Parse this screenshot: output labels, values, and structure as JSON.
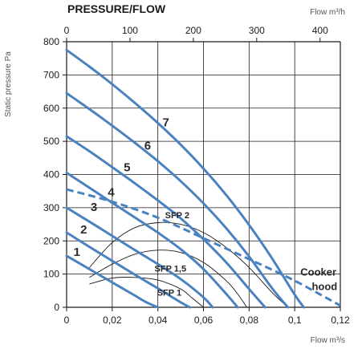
{
  "chart_data": {
    "type": "line",
    "title": "PRESSURE/FLOW",
    "ylabel": "Static pressure Pa",
    "xlabel": "Flow m³/s",
    "x2label": "Flow m³/h",
    "xlim": [
      0,
      0.12
    ],
    "ylim": [
      0,
      800
    ],
    "x2lim": [
      0,
      432
    ],
    "x_ticks": [
      "0",
      "0,02",
      "0,04",
      "0,06",
      "0,08",
      "0,1",
      "0,12"
    ],
    "x_tick_values": [
      0,
      0.02,
      0.04,
      0.06,
      0.08,
      0.1,
      0.12
    ],
    "x2_ticks": [
      "0",
      "100",
      "200",
      "300",
      "400"
    ],
    "x2_tick_values": [
      0,
      100,
      200,
      300,
      400
    ],
    "y_ticks": [
      "0",
      "100",
      "200",
      "300",
      "400",
      "500",
      "600",
      "700",
      "800"
    ],
    "y_tick_values": [
      0,
      100,
      200,
      300,
      400,
      500,
      600,
      700,
      800
    ],
    "grid": true,
    "colors": {
      "fan_curve": "#4a82c0",
      "sfp_curve": "#1a1a1a",
      "grid": "#1a1a1a"
    },
    "series": [
      {
        "name": "1",
        "kind": "fan",
        "x": [
          0,
          0.01,
          0.02,
          0.03,
          0.035,
          0.04
        ],
        "y": [
          155,
          115,
          75,
          35,
          15,
          0
        ]
      },
      {
        "name": "2",
        "kind": "fan",
        "x": [
          0,
          0.01,
          0.02,
          0.03,
          0.04,
          0.05,
          0.054
        ],
        "y": [
          225,
          182,
          140,
          98,
          57,
          15,
          0
        ]
      },
      {
        "name": "3",
        "kind": "fan",
        "x": [
          0,
          0.01,
          0.02,
          0.03,
          0.04,
          0.05,
          0.06,
          0.064
        ],
        "y": [
          300,
          258,
          215,
          172,
          130,
          85,
          30,
          0
        ]
      },
      {
        "name": "4",
        "kind": "fan",
        "x": [
          0,
          0.01,
          0.02,
          0.03,
          0.04,
          0.05,
          0.06,
          0.07,
          0.075
        ],
        "y": [
          405,
          360,
          315,
          270,
          225,
          175,
          115,
          40,
          0
        ]
      },
      {
        "name": "5",
        "kind": "fan",
        "x": [
          0,
          0.01,
          0.02,
          0.03,
          0.04,
          0.05,
          0.06,
          0.07,
          0.08,
          0.087
        ],
        "y": [
          515,
          470,
          422,
          373,
          322,
          268,
          205,
          135,
          55,
          0
        ]
      },
      {
        "name": "6",
        "kind": "fan",
        "x": [
          0,
          0.01,
          0.02,
          0.03,
          0.04,
          0.05,
          0.06,
          0.07,
          0.08,
          0.09,
          0.097
        ],
        "y": [
          645,
          597,
          547,
          495,
          440,
          380,
          313,
          238,
          153,
          58,
          0
        ]
      },
      {
        "name": "7",
        "kind": "fan",
        "x": [
          0,
          0.01,
          0.02,
          0.03,
          0.04,
          0.05,
          0.06,
          0.07,
          0.08,
          0.09,
          0.1,
          0.104
        ],
        "y": [
          775,
          725,
          672,
          615,
          555,
          490,
          418,
          338,
          248,
          148,
          38,
          0
        ]
      },
      {
        "name": "Cooker hood",
        "kind": "dashed",
        "x": [
          0,
          0.02,
          0.04,
          0.06,
          0.08,
          0.1,
          0.12
        ],
        "y": [
          355,
          318,
          270,
          208,
          145,
          80,
          5
        ]
      },
      {
        "name": "SFP 1",
        "kind": "sfp",
        "x": [
          0.01,
          0.02,
          0.03,
          0.04,
          0.05,
          0.055,
          0.06
        ],
        "y": [
          70,
          88,
          90,
          82,
          55,
          28,
          0
        ]
      },
      {
        "name": "SFP 1,5",
        "kind": "sfp",
        "x": [
          0.01,
          0.02,
          0.03,
          0.04,
          0.05,
          0.06,
          0.07,
          0.075,
          0.079
        ],
        "y": [
          90,
          130,
          160,
          172,
          165,
          135,
          80,
          40,
          0
        ]
      },
      {
        "name": "SFP 2",
        "kind": "sfp",
        "x": [
          0.01,
          0.02,
          0.03,
          0.04,
          0.05,
          0.06,
          0.07,
          0.08,
          0.09,
          0.097
        ],
        "y": [
          120,
          195,
          240,
          255,
          250,
          225,
          180,
          120,
          45,
          0
        ]
      }
    ],
    "labels": {
      "curves": [
        "1",
        "2",
        "3",
        "4",
        "5",
        "6",
        "7"
      ],
      "sfp": [
        "SFP 1",
        "SFP 1,5",
        "SFP 2"
      ],
      "cooker": [
        "Cooker",
        "hood"
      ]
    }
  }
}
